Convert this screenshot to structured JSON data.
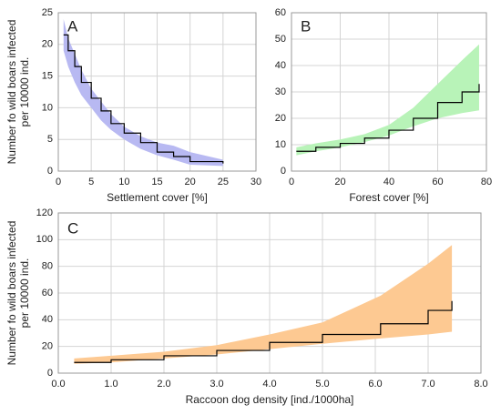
{
  "chart_data": [
    {
      "type": "line",
      "label": "A",
      "xlabel": "Settlement cover [%]",
      "ylabel": [
        "Number fo wild boars infected",
        "per 10000 ind."
      ],
      "x": [
        0.8,
        1.5,
        2.5,
        3.5,
        5,
        6.5,
        8,
        10,
        12.5,
        15,
        17.5,
        20,
        25
      ],
      "series": [
        {
          "color": "#000000",
          "band_color": "#b8b9f2",
          "values": [
            21.5,
            19,
            16.5,
            14,
            11.5,
            9.5,
            7.5,
            6,
            4.5,
            3,
            2.3,
            1.5,
            1.2
          ],
          "lower": [
            19,
            16.5,
            14,
            12,
            10,
            8,
            6.5,
            5,
            3.5,
            2.5,
            1.8,
            1,
            0.8
          ],
          "upper": [
            24,
            21,
            18.5,
            16,
            13,
            11,
            9,
            7,
            5.5,
            4.5,
            4,
            3,
            1.8
          ]
        }
      ],
      "xlim": [
        0,
        30
      ],
      "xticks": [
        0,
        5,
        10,
        15,
        20,
        25,
        30
      ],
      "ylim": [
        0,
        25
      ],
      "yticks": [
        0,
        5,
        10,
        15,
        20,
        25
      ],
      "grid": true
    },
    {
      "type": "line",
      "label": "B",
      "xlabel": "Forest cover [%]",
      "x": [
        2,
        10,
        20,
        30,
        40,
        50,
        60,
        70,
        77
      ],
      "series": [
        {
          "color": "#000000",
          "band_color": "#b8f3b8",
          "values": [
            7.5,
            9,
            10.5,
            12.5,
            15.5,
            20,
            26,
            30,
            33
          ],
          "lower": [
            6,
            7.5,
            9,
            11,
            13.5,
            17,
            20,
            22,
            23
          ],
          "upper": [
            9,
            10.5,
            12,
            14,
            17.5,
            24,
            33,
            42,
            48
          ]
        }
      ],
      "xlim": [
        0,
        80
      ],
      "xticks": [
        0,
        20,
        40,
        60,
        80
      ],
      "ylim": [
        0,
        60
      ],
      "yticks": [
        0,
        10,
        20,
        30,
        40,
        50,
        60
      ],
      "grid": true
    },
    {
      "type": "line",
      "label": "C",
      "xlabel": "Raccoon dog density [ind./1000ha]",
      "ylabel": [
        "Number fo wild boars infected",
        "per 10000 ind."
      ],
      "x": [
        0.3,
        1,
        2,
        3,
        4,
        5,
        6.1,
        7,
        7.45
      ],
      "series": [
        {
          "color": "#000000",
          "band_color": "#fdc992",
          "values": [
            8,
            10,
            13,
            17,
            23,
            29,
            37,
            47,
            54
          ],
          "lower": [
            7,
            8,
            11,
            14,
            18,
            22,
            26,
            29,
            31
          ],
          "upper": [
            11,
            13,
            16,
            21,
            29,
            38,
            58,
            82,
            96
          ]
        }
      ],
      "xlim": [
        0,
        8
      ],
      "xticks": [
        {
          "value": 0,
          "label": "0.0"
        },
        {
          "value": 1,
          "label": "1.0"
        },
        {
          "value": 2,
          "label": "2.0"
        },
        {
          "value": 3,
          "label": "3.0"
        },
        {
          "value": 4,
          "label": "4.0"
        },
        {
          "value": 5,
          "label": "5.0"
        },
        {
          "value": 6,
          "label": "6.0"
        },
        {
          "value": 7,
          "label": "7.0"
        },
        {
          "value": 8,
          "label": "8.0"
        }
      ],
      "ylim": [
        0,
        120
      ],
      "yticks": [
        0,
        20,
        40,
        60,
        80,
        100,
        120
      ],
      "grid": true
    }
  ]
}
